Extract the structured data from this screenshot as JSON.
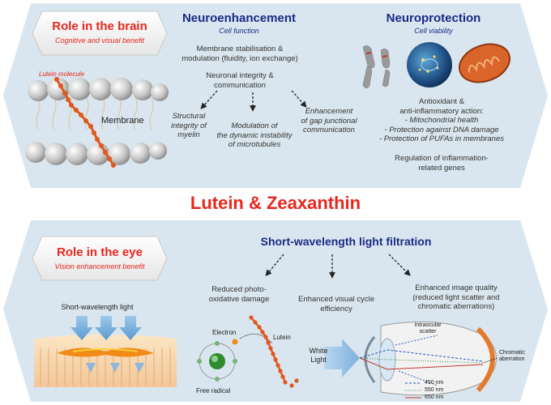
{
  "main_title": "Lutein & Zeaxanthin",
  "brain": {
    "badge_title": "Role in the brain",
    "badge_subtitle": "Cognitive and visual benefit",
    "lutein_label": "Lutein molecule",
    "membrane_label": "Membrane",
    "neuroenhancement": {
      "title": "Neuroenhancement",
      "subtitle": "Cell function",
      "line1": "Membrane stabilisation &",
      "line2": "modulation (fluidity, ion exchange)",
      "integrity1": "Neuronal integrity &",
      "integrity2": "communication",
      "outcomes": [
        [
          "Structural",
          "integrity of",
          "myelin"
        ],
        [
          "Modulation of",
          "the dynamic instability",
          "of microtubules"
        ],
        [
          "Enhancement",
          "of gap junctional",
          "communication"
        ]
      ]
    },
    "neuroprotection": {
      "title": "Neuroprotection",
      "subtitle": "Cell viability",
      "action1": "Antioxidant &",
      "action2": "anti-inflammatory action:",
      "bullets": [
        "- Mitochondrial health",
        "- Protection against DNA damage",
        "- Protection of PUFAs in membranes"
      ],
      "reg1": "Regulation of inflammation-",
      "reg2": "related genes"
    }
  },
  "eye": {
    "badge_title": "Role in the eye",
    "badge_subtitle": "Vision enhancement benefit",
    "filtration_title": "Short-wavelength light filtration",
    "light_label": "Short-wavelength light",
    "outcomes": [
      [
        "Reduced photo-",
        "oxidative damage"
      ],
      [
        "Enhanced visual cycle",
        "efficiency"
      ],
      [
        "Enhanced image quality",
        "(reduced light scatter and",
        "chromatic aberrations)"
      ]
    ],
    "electron_label": "Electron",
    "lutein_label": "Lutein",
    "free_radical_label": "Free radical",
    "white1": "White",
    "white2": "Light",
    "scatter1": "Intraocular",
    "scatter2": "scatter",
    "chromatic1": "Chromatic",
    "chromatic2": "aberration",
    "wavelengths": [
      "450 nm",
      "550 nm",
      "650 nm"
    ]
  },
  "colors": {
    "accent_red": "#e8261d",
    "navy": "#1b2a86",
    "panel": "#d9e6ef",
    "lutein_orange": "#e2571d"
  }
}
